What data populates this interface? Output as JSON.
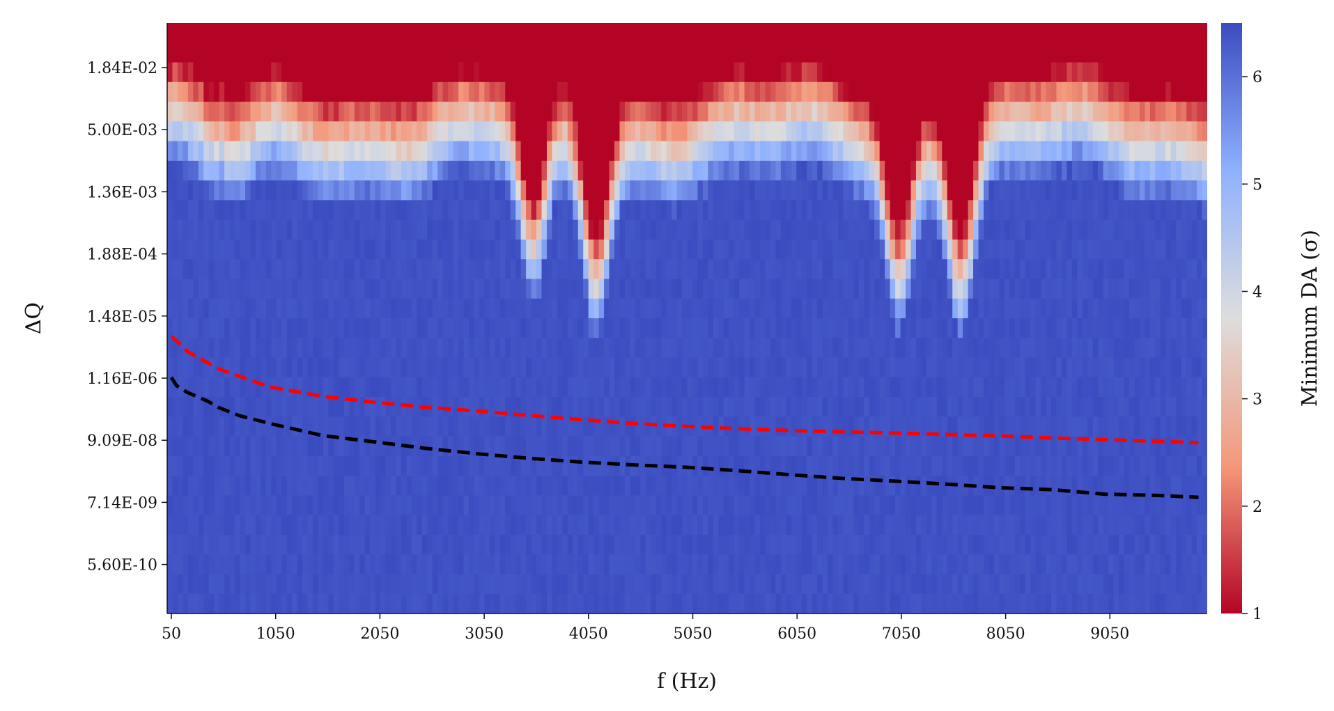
{
  "chart_data": {
    "type": "heatmap",
    "xlabel": "f (Hz)",
    "ylabel": "ΔQ",
    "colorbar_label": "Minimum DA (σ)",
    "colormap": "coolwarm",
    "colormap_stops": [
      "#b40426",
      "#f4987a",
      "#dddddd",
      "#8fb1fe",
      "#3b4cc0"
    ],
    "x_tick_labels": [
      "50",
      "1050",
      "2050",
      "3050",
      "4050",
      "5050",
      "6050",
      "7050",
      "8050",
      "9050"
    ],
    "x_tick_values": [
      50,
      1050,
      2050,
      3050,
      4050,
      5050,
      6050,
      7050,
      8050,
      9050
    ],
    "xlim": [
      50,
      10000
    ],
    "y_scale": "log",
    "y_tick_labels": [
      "1.84E-02",
      "5.00E-03",
      "1.36E-03",
      "1.88E-04",
      "1.48E-05",
      "1.16E-06",
      "9.09E-08",
      "7.14E-09",
      "5.60E-10"
    ],
    "y_tick_values": [
      0.0184,
      0.005,
      0.00136,
      0.000188,
      1.48e-05,
      1.16e-06,
      9.09e-08,
      7.14e-09,
      5.6e-10
    ],
    "ylim": [
      1e-10,
      0.05
    ],
    "colorbar_ticks": [
      1,
      2,
      3,
      4,
      5,
      6
    ],
    "colorbar_range": [
      1,
      6.5
    ],
    "resonance_dips_hz": [
      3550,
      4150,
      7050,
      7650
    ],
    "series": [
      {
        "color": "#ff0000",
        "style": "dashed",
        "x": [
          50,
          200,
          500,
          1000,
          1500,
          2000,
          2500,
          3000,
          3500,
          4000,
          4500,
          5000,
          5500,
          6000,
          6500,
          7000,
          7500,
          8000,
          8500,
          9000,
          9500,
          9900
        ],
        "y": [
          6.5e-06,
          3.5e-06,
          1.7e-06,
          8e-07,
          5.5e-07,
          4.3e-07,
          3.5e-07,
          3e-07,
          2.5e-07,
          2.1e-07,
          1.8e-07,
          1.6e-07,
          1.45e-07,
          1.35e-07,
          1.28e-07,
          1.22e-07,
          1.15e-07,
          1.08e-07,
          1e-07,
          9.3e-08,
          8.7e-08,
          8.2e-08
        ]
      },
      {
        "color": "#000000",
        "style": "dashed",
        "x": [
          50,
          100,
          200,
          400,
          500,
          700,
          1000,
          1500,
          2000,
          2500,
          3000,
          3500,
          4000,
          4500,
          5000,
          5500,
          6000,
          6500,
          7000,
          7500,
          8000,
          8500,
          9000,
          9500,
          9900
        ],
        "y": [
          1.2e-06,
          8.5e-07,
          6.5e-07,
          4.5e-07,
          3.5e-07,
          2.5e-07,
          1.8e-07,
          1.1e-07,
          8.5e-08,
          6.5e-08,
          5.2e-08,
          4.3e-08,
          3.7e-08,
          3.3e-08,
          3e-08,
          2.6e-08,
          2.2e-08,
          1.9e-08,
          1.7e-08,
          1.5e-08,
          1.3e-08,
          1.2e-08,
          1e-08,
          9.5e-09,
          8.8e-09
        ]
      }
    ]
  }
}
